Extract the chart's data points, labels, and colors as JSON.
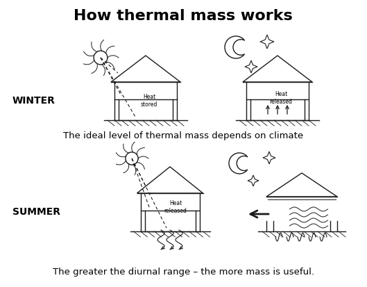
{
  "title": "How thermal mass works",
  "title_fontsize": 16,
  "title_fontweight": "bold",
  "winter_label": "WINTER",
  "summer_label": "SUMMER",
  "caption1": "The ideal level of thermal mass depends on climate",
  "caption2": "The greater the diurnal range – the more mass is useful.",
  "heat_stored": "Heat\nstored",
  "heat_released": "Heat\nreleased",
  "background_color": "#ffffff",
  "text_color": "#000000",
  "line_color": "#1a1a1a",
  "label_fontsize": 10,
  "caption_fontsize": 9.5
}
